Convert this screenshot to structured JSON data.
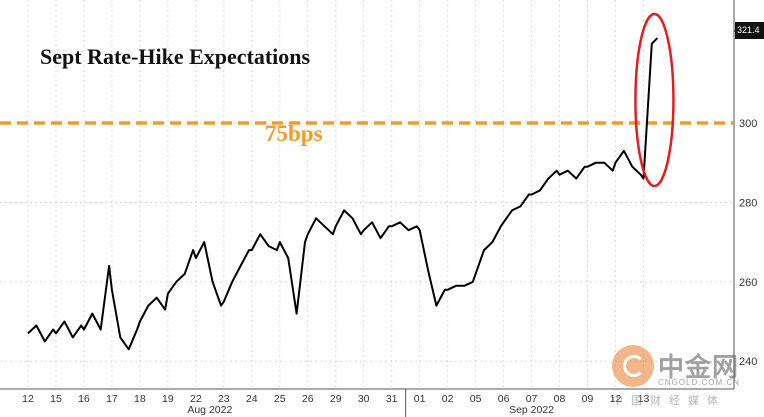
{
  "chart_data": {
    "type": "line",
    "title": "Sept Rate-Hike Expectations",
    "reference_line": {
      "value": 300,
      "label": "75bps",
      "color": "#f39a2b"
    },
    "y_axis": {
      "position": "right",
      "range": [
        233,
        331
      ],
      "ticks": [
        240,
        260,
        280,
        300
      ]
    },
    "x_tick_labels": [
      "12",
      "15",
      "16",
      "17",
      "18",
      "19",
      "22",
      "23",
      "24",
      "25",
      "26",
      "29",
      "30",
      "31",
      "01",
      "02",
      "05",
      "06",
      "07",
      "08",
      "09",
      "12",
      "13"
    ],
    "x_group_labels": [
      {
        "label": "Aug 2022"
      },
      {
        "label": "Sep 2022"
      }
    ],
    "last_value_label": "321.4",
    "highlight": "red ellipse around final spike",
    "series": [
      {
        "color": "#000000",
        "x": [
          0.0,
          0.3,
          0.6,
          0.9,
          1.0,
          1.3,
          1.6,
          1.9,
          2.0,
          2.3,
          2.6,
          2.9,
          3.0,
          3.3,
          3.6,
          3.9,
          4.0,
          4.3,
          4.6,
          4.9,
          5.0,
          5.3,
          5.6,
          5.9,
          6.0,
          6.3,
          6.6,
          6.9,
          7.0,
          7.3,
          7.6,
          7.9,
          8.0,
          8.3,
          8.6,
          8.9,
          9.0,
          9.3,
          9.6,
          9.9,
          10.0,
          10.3,
          10.6,
          10.9,
          11.0,
          11.3,
          11.6,
          11.9,
          12.0,
          12.3,
          12.6,
          12.9,
          13.0,
          13.3,
          13.6,
          13.9,
          14.0,
          14.3,
          14.6,
          14.9,
          15.0,
          15.3,
          15.6,
          15.9,
          16.0,
          16.3,
          16.6,
          16.9,
          17.0,
          17.3,
          17.6,
          17.9,
          18.0,
          18.3,
          18.6,
          18.9,
          19.0,
          19.3,
          19.6,
          19.9,
          20.0,
          20.3,
          20.6,
          20.9,
          21.0,
          21.3,
          21.6,
          21.9,
          22.0,
          22.3,
          22.5
        ],
        "y": [
          247,
          249,
          245,
          248,
          247,
          250,
          246,
          249,
          248,
          252,
          248,
          264,
          258,
          246,
          243,
          248,
          250,
          254,
          256,
          253,
          257,
          260,
          262,
          268,
          266,
          270,
          260,
          254,
          255,
          260,
          264,
          268,
          268,
          272,
          269,
          268,
          270,
          266,
          252,
          270,
          272,
          276,
          274,
          272,
          274,
          278,
          276,
          272,
          273,
          275,
          271,
          274,
          274,
          275,
          273,
          274,
          273,
          263,
          254,
          258,
          258,
          259,
          259,
          260,
          262,
          268,
          270,
          274,
          275,
          278,
          279,
          282,
          282,
          283,
          286,
          288,
          287,
          288,
          286,
          289,
          289,
          290,
          290,
          288,
          290,
          293,
          289,
          287,
          286,
          320,
          321.4
        ]
      }
    ]
  }
}
